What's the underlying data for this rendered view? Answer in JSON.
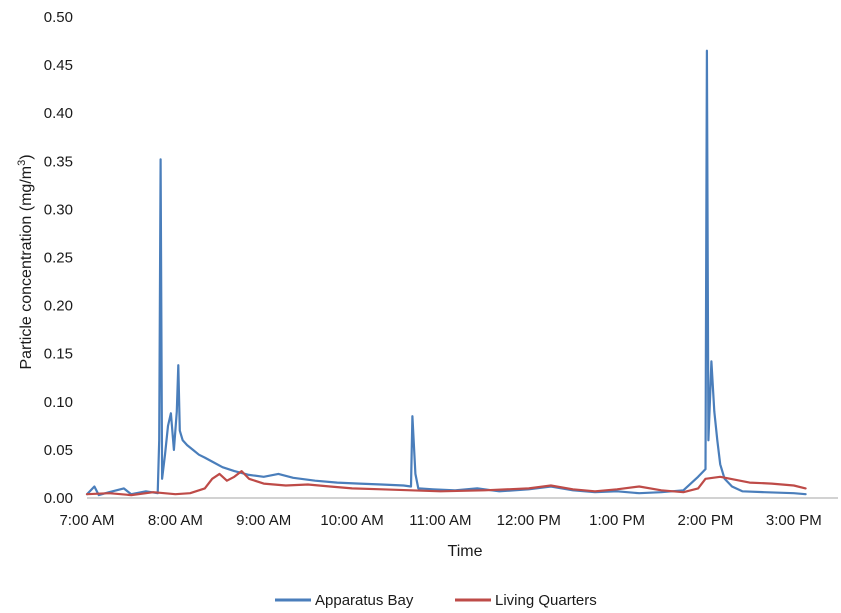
{
  "chart_data": {
    "type": "line",
    "xlabel": "Time",
    "ylabel": "Particle concentration (mg/m³)",
    "ylabel_base": "Particle concentration (mg/m",
    "ylabel_sup": "3",
    "ylabel_close": ")",
    "ylim": [
      0,
      0.5
    ],
    "yticks": [
      "0.00",
      "0.05",
      "0.10",
      "0.15",
      "0.20",
      "0.25",
      "0.30",
      "0.35",
      "0.40",
      "0.45",
      "0.50"
    ],
    "xlim": [
      "7:00 AM",
      "3:30 PM"
    ],
    "xticks": [
      "7:00 AM",
      "8:00 AM",
      "9:00 AM",
      "10:00 AM",
      "11:00 AM",
      "12:00 PM",
      "1:00 PM",
      "2:00 PM",
      "3:00 PM"
    ],
    "grid": false,
    "legend": "bottom-center",
    "series": [
      {
        "name": "Apparatus Bay",
        "color": "#4a7ebb",
        "points": [
          [
            "7:00 AM",
            0.004
          ],
          [
            "7:05 AM",
            0.012
          ],
          [
            "7:08 AM",
            0.003
          ],
          [
            "7:15 AM",
            0.006
          ],
          [
            "7:25 AM",
            0.01
          ],
          [
            "7:30 AM",
            0.004
          ],
          [
            "7:40 AM",
            0.007
          ],
          [
            "7:48 AM",
            0.005
          ],
          [
            "7:49 AM",
            0.06
          ],
          [
            "7:50 AM",
            0.352
          ],
          [
            "7:51 AM",
            0.02
          ],
          [
            "7:53 AM",
            0.045
          ],
          [
            "7:55 AM",
            0.075
          ],
          [
            "7:57 AM",
            0.088
          ],
          [
            "7:59 AM",
            0.05
          ],
          [
            "8:01 AM",
            0.09
          ],
          [
            "8:02 AM",
            0.138
          ],
          [
            "8:03 AM",
            0.07
          ],
          [
            "8:05 AM",
            0.06
          ],
          [
            "8:08 AM",
            0.055
          ],
          [
            "8:12 AM",
            0.05
          ],
          [
            "8:16 AM",
            0.045
          ],
          [
            "8:20 AM",
            0.042
          ],
          [
            "8:26 AM",
            0.037
          ],
          [
            "8:32 AM",
            0.032
          ],
          [
            "8:40 AM",
            0.028
          ],
          [
            "8:50 AM",
            0.024
          ],
          [
            "9:00 AM",
            0.022
          ],
          [
            "9:10 AM",
            0.025
          ],
          [
            "9:20 AM",
            0.021
          ],
          [
            "9:35 AM",
            0.018
          ],
          [
            "9:50 AM",
            0.016
          ],
          [
            "10:05 AM",
            0.015
          ],
          [
            "10:20 AM",
            0.014
          ],
          [
            "10:35 AM",
            0.013
          ],
          [
            "10:40 AM",
            0.012
          ],
          [
            "10:41 AM",
            0.085
          ],
          [
            "10:43 AM",
            0.025
          ],
          [
            "10:45 AM",
            0.01
          ],
          [
            "10:55 AM",
            0.009
          ],
          [
            "11:10 AM",
            0.008
          ],
          [
            "11:25 AM",
            0.01
          ],
          [
            "11:40 AM",
            0.007
          ],
          [
            "12:00 PM",
            0.009
          ],
          [
            "12:15 PM",
            0.012
          ],
          [
            "12:30 PM",
            0.008
          ],
          [
            "12:45 PM",
            0.006
          ],
          [
            "1:00 PM",
            0.007
          ],
          [
            "1:15 PM",
            0.005
          ],
          [
            "1:30 PM",
            0.006
          ],
          [
            "1:45 PM",
            0.008
          ],
          [
            "1:55 PM",
            0.022
          ],
          [
            "2:00 PM",
            0.03
          ],
          [
            "2:01 PM",
            0.465
          ],
          [
            "2:02 PM",
            0.06
          ],
          [
            "2:03 PM",
            0.1
          ],
          [
            "2:04 PM",
            0.142
          ],
          [
            "2:06 PM",
            0.09
          ],
          [
            "2:08 PM",
            0.06
          ],
          [
            "2:10 PM",
            0.035
          ],
          [
            "2:13 PM",
            0.02
          ],
          [
            "2:18 PM",
            0.012
          ],
          [
            "2:25 PM",
            0.007
          ],
          [
            "2:40 PM",
            0.006
          ],
          [
            "3:00 PM",
            0.005
          ],
          [
            "3:08 PM",
            0.004
          ]
        ]
      },
      {
        "name": "Living Quarters",
        "color": "#be4b48",
        "points": [
          [
            "7:00 AM",
            0.004
          ],
          [
            "7:15 AM",
            0.005
          ],
          [
            "7:30 AM",
            0.003
          ],
          [
            "7:45 AM",
            0.006
          ],
          [
            "8:00 AM",
            0.004
          ],
          [
            "8:10 AM",
            0.005
          ],
          [
            "8:20 AM",
            0.01
          ],
          [
            "8:25 AM",
            0.02
          ],
          [
            "8:30 AM",
            0.025
          ],
          [
            "8:35 AM",
            0.018
          ],
          [
            "8:40 AM",
            0.022
          ],
          [
            "8:45 AM",
            0.028
          ],
          [
            "8:50 AM",
            0.02
          ],
          [
            "9:00 AM",
            0.015
          ],
          [
            "9:15 AM",
            0.013
          ],
          [
            "9:30 AM",
            0.014
          ],
          [
            "9:45 AM",
            0.012
          ],
          [
            "10:00 AM",
            0.01
          ],
          [
            "10:20 AM",
            0.009
          ],
          [
            "10:40 AM",
            0.008
          ],
          [
            "11:00 AM",
            0.007
          ],
          [
            "11:30 AM",
            0.008
          ],
          [
            "12:00 PM",
            0.01
          ],
          [
            "12:15 PM",
            0.013
          ],
          [
            "12:30 PM",
            0.009
          ],
          [
            "12:45 PM",
            0.007
          ],
          [
            "1:00 PM",
            0.009
          ],
          [
            "1:15 PM",
            0.012
          ],
          [
            "1:30 PM",
            0.008
          ],
          [
            "1:45 PM",
            0.006
          ],
          [
            "1:55 PM",
            0.01
          ],
          [
            "2:00 PM",
            0.02
          ],
          [
            "2:10 PM",
            0.022
          ],
          [
            "2:20 PM",
            0.019
          ],
          [
            "2:30 PM",
            0.016
          ],
          [
            "2:45 PM",
            0.015
          ],
          [
            "3:00 PM",
            0.013
          ],
          [
            "3:08 PM",
            0.01
          ]
        ]
      }
    ]
  }
}
